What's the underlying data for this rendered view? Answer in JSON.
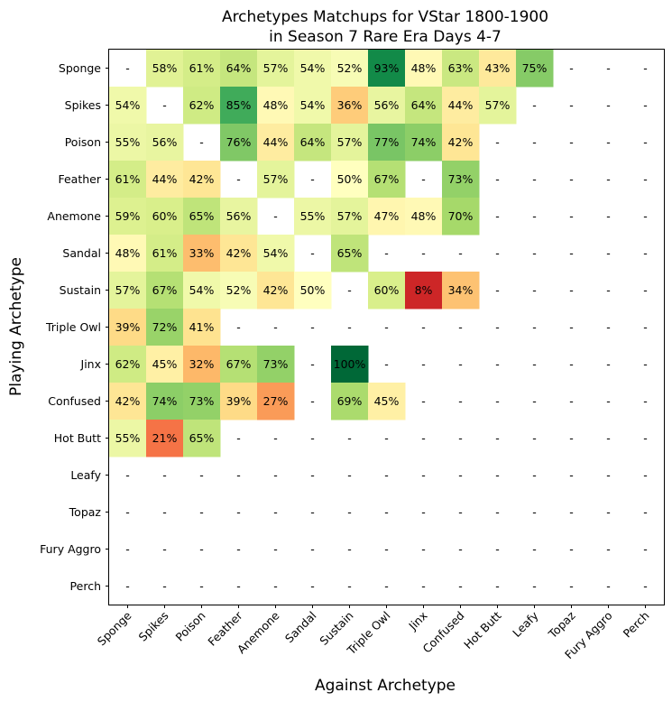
{
  "chart_data": {
    "type": "heatmap",
    "title": "Archetypes Matchups for VStar 1800-1900",
    "subtitle": "in Season 7 Rare Era Days 4-7",
    "xlabel": "Against Archetype",
    "ylabel": "Playing Archetype",
    "colormap": "RdYlGn",
    "color_range": [
      0,
      100
    ],
    "missing_label": "-",
    "x_categories": [
      "Sponge",
      "Spikes",
      "Poison",
      "Feather",
      "Anemone",
      "Sandal",
      "Sustain",
      "Triple Owl",
      "Jinx",
      "Confused",
      "Hot Butt",
      "Leafy",
      "Topaz",
      "Fury Aggro",
      "Perch"
    ],
    "y_categories": [
      "Sponge",
      "Spikes",
      "Poison",
      "Feather",
      "Anemone",
      "Sandal",
      "Sustain",
      "Triple Owl",
      "Jinx",
      "Confused",
      "Hot Butt",
      "Leafy",
      "Topaz",
      "Fury Aggro",
      "Perch"
    ],
    "values": [
      [
        null,
        58,
        61,
        64,
        57,
        54,
        52,
        93,
        48,
        63,
        43,
        75,
        null,
        null,
        null
      ],
      [
        54,
        null,
        62,
        85,
        48,
        54,
        36,
        56,
        64,
        44,
        57,
        null,
        null,
        null,
        null
      ],
      [
        55,
        56,
        null,
        76,
        44,
        64,
        57,
        77,
        74,
        42,
        null,
        null,
        null,
        null,
        null
      ],
      [
        61,
        44,
        42,
        null,
        57,
        null,
        50,
        67,
        null,
        73,
        null,
        null,
        null,
        null,
        null
      ],
      [
        59,
        60,
        65,
        56,
        null,
        55,
        57,
        47,
        48,
        70,
        null,
        null,
        null,
        null,
        null
      ],
      [
        48,
        61,
        33,
        42,
        54,
        null,
        65,
        null,
        null,
        null,
        null,
        null,
        null,
        null,
        null
      ],
      [
        57,
        67,
        54,
        52,
        42,
        50,
        null,
        60,
        8,
        34,
        null,
        null,
        null,
        null,
        null
      ],
      [
        39,
        72,
        41,
        null,
        null,
        null,
        null,
        null,
        null,
        null,
        null,
        null,
        null,
        null,
        null
      ],
      [
        62,
        45,
        32,
        67,
        73,
        null,
        100,
        null,
        null,
        null,
        null,
        null,
        null,
        null,
        null
      ],
      [
        42,
        74,
        73,
        39,
        27,
        null,
        69,
        45,
        null,
        null,
        null,
        null,
        null,
        null,
        null
      ],
      [
        55,
        21,
        65,
        null,
        null,
        null,
        null,
        null,
        null,
        null,
        null,
        null,
        null,
        null,
        null
      ],
      [
        null,
        null,
        null,
        null,
        null,
        null,
        null,
        null,
        null,
        null,
        null,
        null,
        null,
        null,
        null
      ],
      [
        null,
        null,
        null,
        null,
        null,
        null,
        null,
        null,
        null,
        null,
        null,
        null,
        null,
        null,
        null
      ],
      [
        null,
        null,
        null,
        null,
        null,
        null,
        null,
        null,
        null,
        null,
        null,
        null,
        null,
        null,
        null
      ],
      [
        null,
        null,
        null,
        null,
        null,
        null,
        null,
        null,
        null,
        null,
        null,
        null,
        null,
        null,
        null
      ]
    ],
    "cell_labels": [
      [
        "-",
        "58%",
        "61%",
        "64%",
        "57%",
        "54%",
        "52%",
        "93%",
        "48%",
        "63%",
        "43%",
        "75%",
        "-",
        "-",
        "-"
      ],
      [
        "54%",
        "-",
        "62%",
        "85%",
        "48%",
        "54%",
        "36%",
        "56%",
        "64%",
        "44%",
        "57%",
        "-",
        "-",
        "-",
        "-"
      ],
      [
        "55%",
        "56%",
        "-",
        "76%",
        "44%",
        "64%",
        "57%",
        "77%",
        "74%",
        "42%",
        "-",
        "-",
        "-",
        "-",
        "-"
      ],
      [
        "61%",
        "44%",
        "42%",
        "-",
        "57%",
        "-",
        "50%",
        "67%",
        "-",
        "73%",
        "-",
        "-",
        "-",
        "-",
        "-"
      ],
      [
        "59%",
        "60%",
        "65%",
        "56%",
        "-",
        "55%",
        "57%",
        "47%",
        "48%",
        "70%",
        "-",
        "-",
        "-",
        "-",
        "-"
      ],
      [
        "48%",
        "61%",
        "33%",
        "42%",
        "54%",
        "-",
        "65%",
        "-",
        "-",
        "-",
        "-",
        "-",
        "-",
        "-",
        "-"
      ],
      [
        "57%",
        "67%",
        "54%",
        "52%",
        "42%",
        "50%",
        "-",
        "60%",
        "8%",
        "34%",
        "-",
        "-",
        "-",
        "-",
        "-"
      ],
      [
        "39%",
        "72%",
        "41%",
        "-",
        "-",
        "-",
        "-",
        "-",
        "-",
        "-",
        "-",
        "-",
        "-",
        "-",
        "-"
      ],
      [
        "62%",
        "45%",
        "32%",
        "67%",
        "73%",
        "-",
        "100%",
        "-",
        "-",
        "-",
        "-",
        "-",
        "-",
        "-",
        "-"
      ],
      [
        "42%",
        "74%",
        "73%",
        "39%",
        "27%",
        "-",
        "69%",
        "45%",
        "-",
        "-",
        "-",
        "-",
        "-",
        "-",
        "-"
      ],
      [
        "55%",
        "21%",
        "65%",
        "-",
        "-",
        "-",
        "-",
        "-",
        "-",
        "-",
        "-",
        "-",
        "-",
        "-",
        "-"
      ],
      [
        "-",
        "-",
        "-",
        "-",
        "-",
        "-",
        "-",
        "-",
        "-",
        "-",
        "-",
        "-",
        "-",
        "-",
        "-"
      ],
      [
        "-",
        "-",
        "-",
        "-",
        "-",
        "-",
        "-",
        "-",
        "-",
        "-",
        "-",
        "-",
        "-",
        "-",
        "-"
      ],
      [
        "-",
        "-",
        "-",
        "-",
        "-",
        "-",
        "-",
        "-",
        "-",
        "-",
        "-",
        "-",
        "-",
        "-",
        "-"
      ],
      [
        "-",
        "-",
        "-",
        "-",
        "-",
        "-",
        "-",
        "-",
        "-",
        "-",
        "-",
        "-",
        "-",
        "-",
        "-"
      ]
    ]
  }
}
